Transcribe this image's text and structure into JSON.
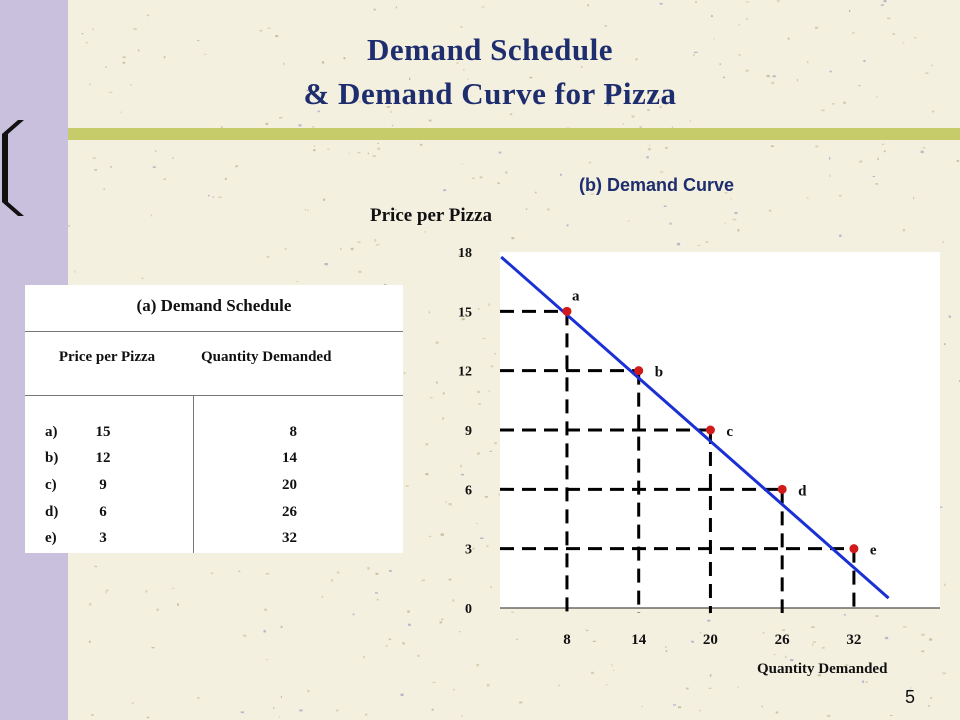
{
  "slide": {
    "title_line1": "Demand Schedule",
    "title_line2": "& Demand Curve for Pizza",
    "page_number": "5"
  },
  "schedule": {
    "title": "(a) Demand Schedule",
    "col_price": "Price per Pizza",
    "col_quantity": "Quantity Demanded",
    "rows": [
      {
        "point": "a)",
        "price": "15",
        "quantity": "8"
      },
      {
        "point": "b)",
        "price": "12",
        "quantity": "14"
      },
      {
        "point": "c)",
        "price": "9",
        "quantity": "20"
      },
      {
        "point": "d)",
        "price": "6",
        "quantity": "26"
      },
      {
        "point": "e)",
        "price": "3",
        "quantity": "32"
      }
    ]
  },
  "colors": {
    "background": "#f4f0df",
    "sidebar": "#c8c0dc",
    "divider": "#c7cc6b",
    "title": "#1e2d6e",
    "curve": "#1a2fd6",
    "points": "#d11a1a"
  },
  "chart_data": {
    "type": "line",
    "title": "(b) Demand Curve",
    "xlabel": "Quantity Demanded",
    "ylabel": "Price per Pizza",
    "x_ticks": [
      8,
      14,
      20,
      26,
      32
    ],
    "y_ticks": [
      0,
      3,
      6,
      9,
      12,
      15,
      18
    ],
    "xlim": [
      2.4,
      39.2
    ],
    "ylim": [
      0,
      18
    ],
    "grid": false,
    "dashed_guides": true,
    "series": [
      {
        "x": [
          8,
          14,
          20,
          26,
          32
        ],
        "y": [
          15,
          12,
          9,
          6,
          3
        ],
        "labels": [
          "a",
          "b",
          "c",
          "d",
          "e"
        ]
      }
    ],
    "line_extent": {
      "x": [
        2.5,
        34.9
      ],
      "y": [
        17.75,
        0.5
      ]
    }
  }
}
